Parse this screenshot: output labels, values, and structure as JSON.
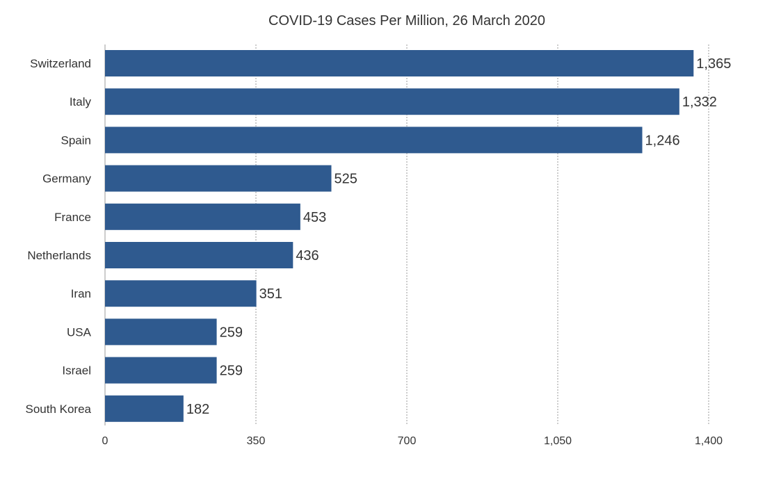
{
  "chart_data": {
    "type": "bar",
    "orientation": "horizontal",
    "title": "COVID-19 Cases Per Million, 26 March 2020",
    "categories": [
      "Switzerland",
      "Italy",
      "Spain",
      "Germany",
      "France",
      "Netherlands",
      "Iran",
      "USA",
      "Israel",
      "South Korea"
    ],
    "values": [
      1365,
      1332,
      1246,
      525,
      453,
      436,
      351,
      259,
      259,
      182
    ],
    "value_labels": [
      "1,365",
      "1,332",
      "1,246",
      "525",
      "453",
      "436",
      "351",
      "259",
      "259",
      "182"
    ],
    "xlim": [
      0,
      1400
    ],
    "xticks": [
      0,
      350,
      700,
      1050,
      1400
    ],
    "xtick_labels": [
      "0",
      "350",
      "700",
      "1,050",
      "1,400"
    ],
    "grid": "vertical dashed",
    "legend": "none",
    "bar_color": "#2f5a8f"
  }
}
